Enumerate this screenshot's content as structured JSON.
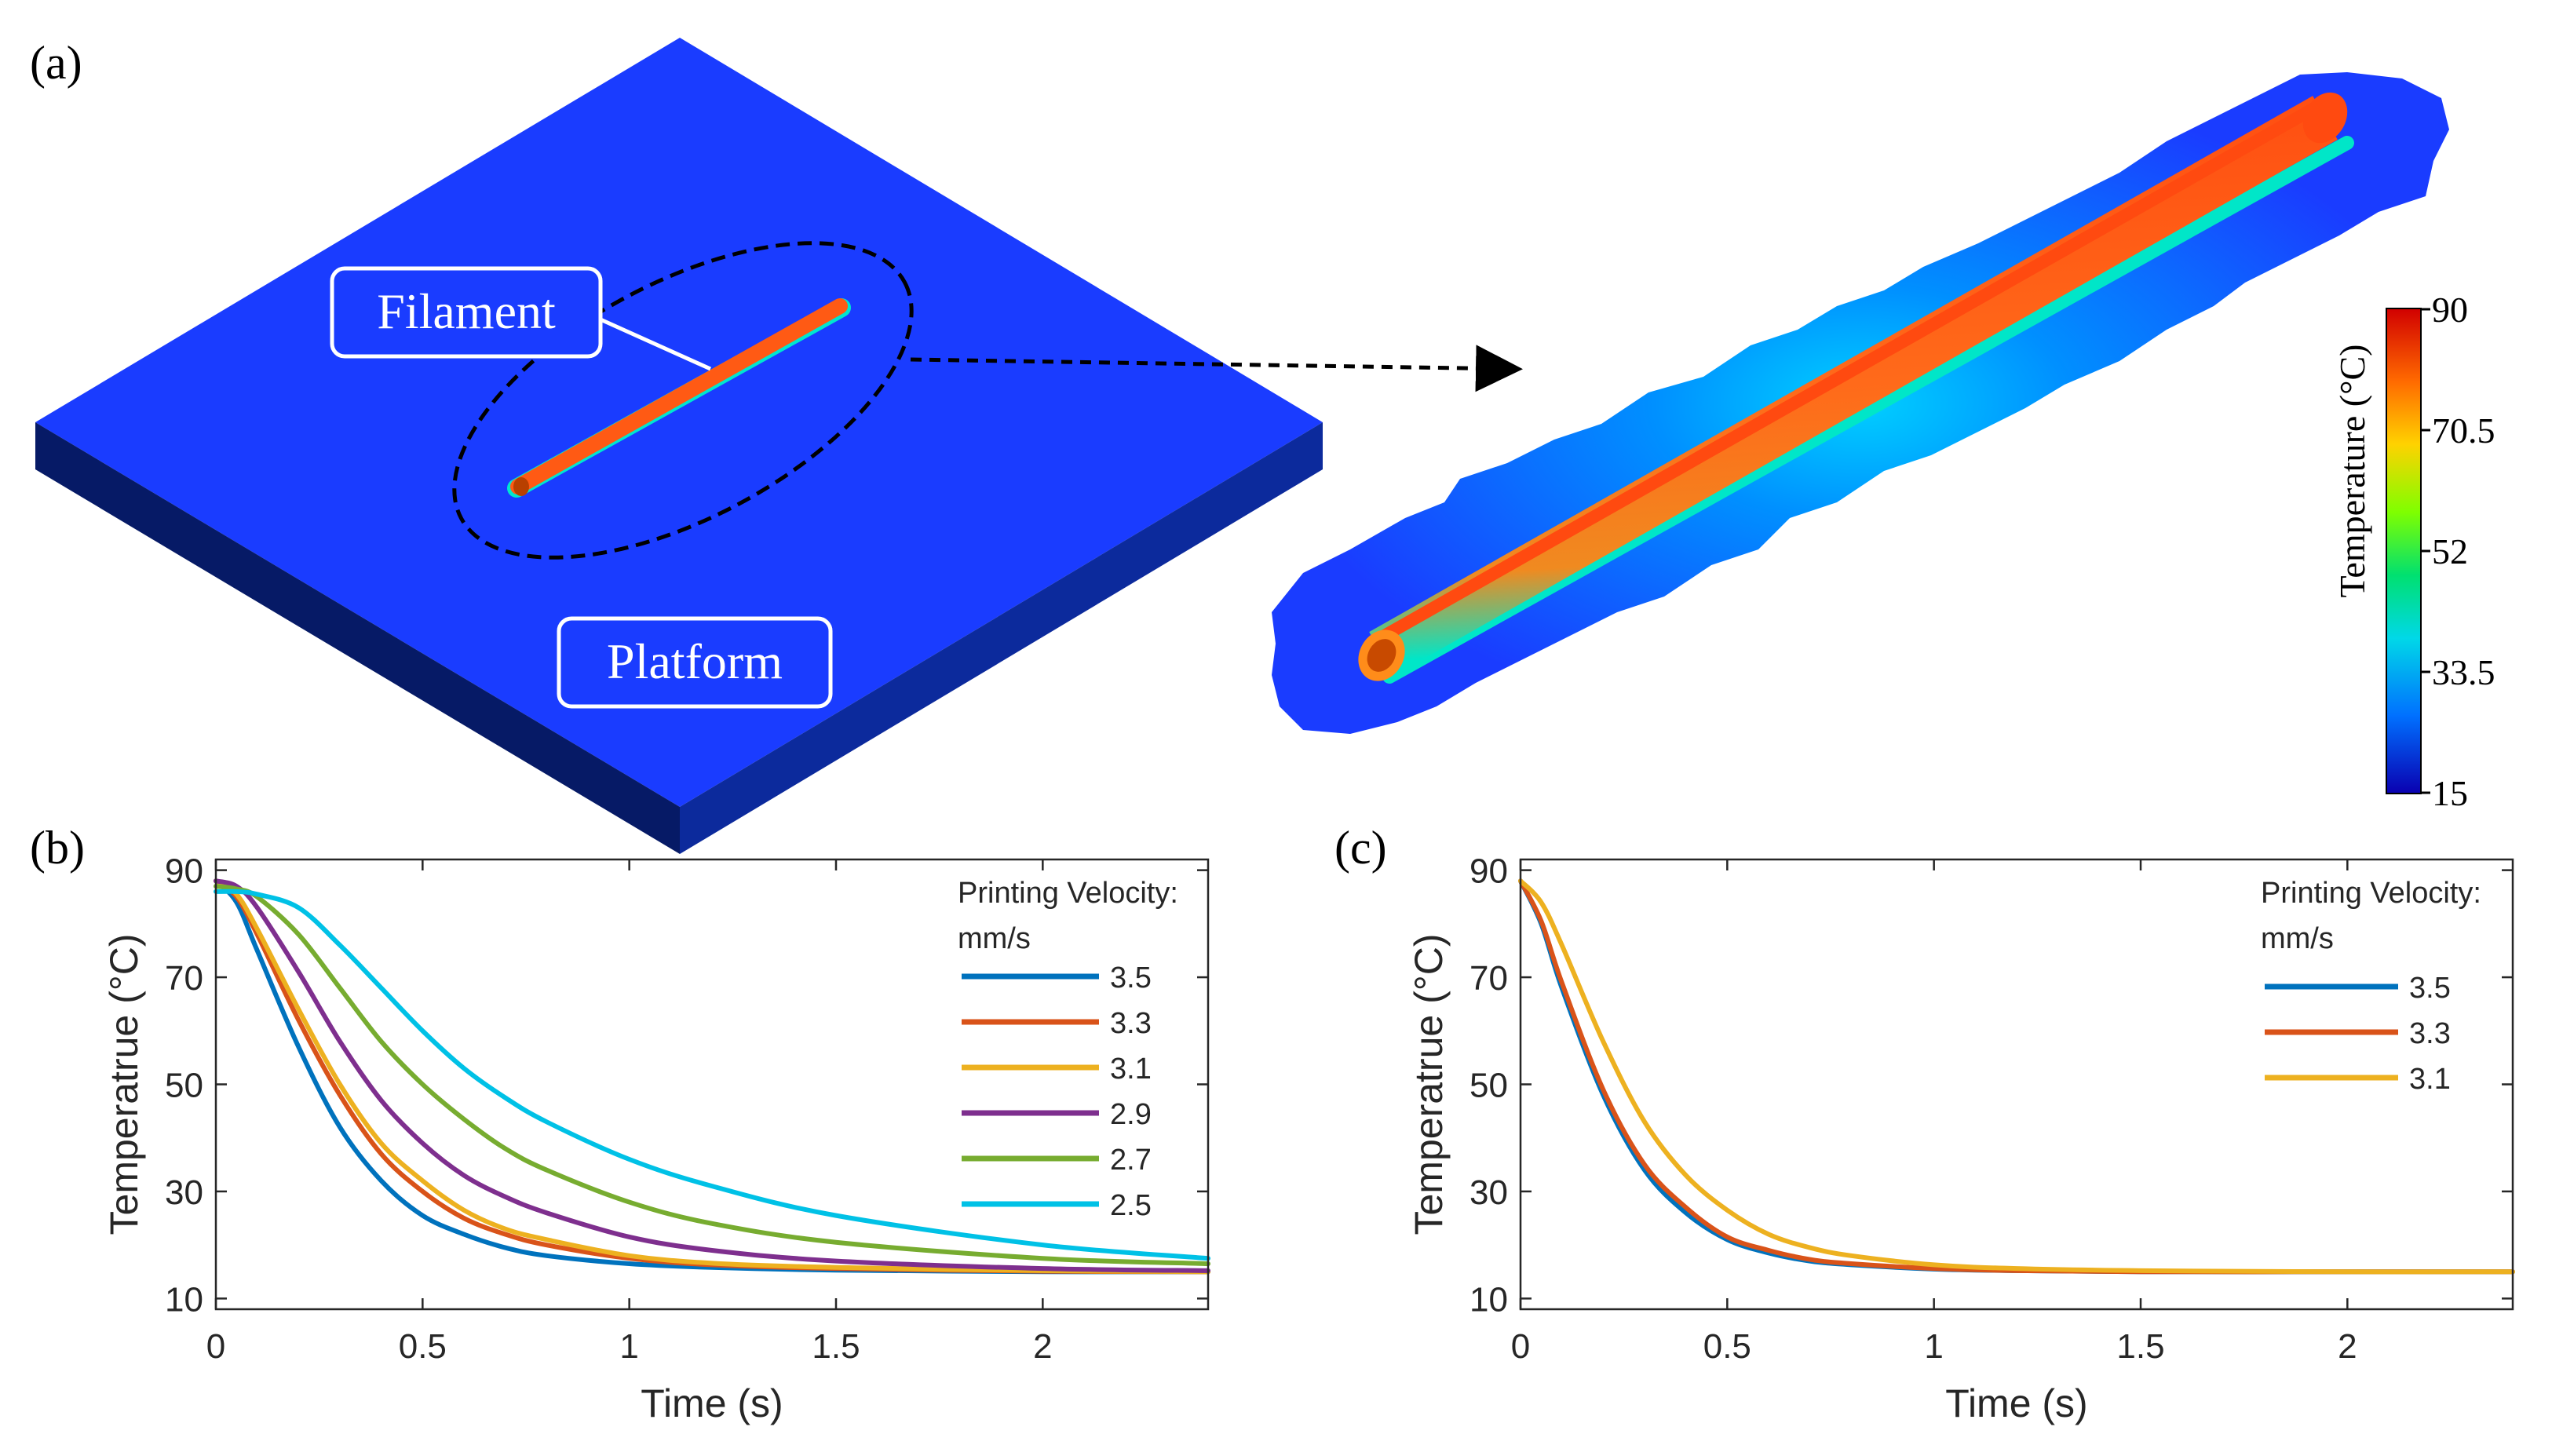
{
  "panel_labels": {
    "a": "(a)",
    "b": "(b)",
    "c": "(c)"
  },
  "panel_a": {
    "filament_label": "Filament",
    "platform_label": "Platform",
    "colorbar": {
      "title": "Temperature (°C)",
      "ticks": [
        "90",
        "70.5",
        "52",
        "33.5",
        "15"
      ],
      "colors": [
        "#d10000",
        "#ff6a00",
        "#ffd200",
        "#7fff00",
        "#00e070",
        "#00d8e8",
        "#0070ff",
        "#0a00b0"
      ]
    },
    "colors": {
      "platform": "#1a3cff",
      "platform_side": "#0a1f70",
      "filament": "#ff5a14"
    }
  },
  "chart_data": [
    {
      "type": "line",
      "panel": "(b)",
      "xlabel": "Time (s)",
      "ylabel": "Temperatrue (°C)",
      "xlim": [
        0,
        2.4
      ],
      "ylim": [
        8,
        92
      ],
      "xticks": [
        0,
        0.5,
        1,
        1.5,
        2
      ],
      "xtick_labels": [
        "0",
        "0.5",
        "1",
        "1.5",
        "2"
      ],
      "yticks": [
        10,
        30,
        50,
        70,
        90
      ],
      "ytick_labels": [
        "10",
        "30",
        "50",
        "70",
        "90"
      ],
      "legend_title": [
        "Printing Velocity:",
        "mm/s"
      ],
      "legend_position": "top-right",
      "series": [
        {
          "name": "3.5",
          "color": "#0072bd",
          "x": [
            0,
            0.05,
            0.1,
            0.2,
            0.3,
            0.4,
            0.5,
            0.6,
            0.7,
            0.8,
            1.0,
            1.2,
            1.5,
            2.0,
            2.4
          ],
          "y": [
            88,
            84,
            75,
            57,
            42,
            32,
            25.5,
            22,
            19.5,
            18,
            16.5,
            15.8,
            15.3,
            15,
            15
          ]
        },
        {
          "name": "3.3",
          "color": "#d95319",
          "x": [
            0,
            0.05,
            0.1,
            0.2,
            0.3,
            0.4,
            0.5,
            0.6,
            0.7,
            0.8,
            1.0,
            1.2,
            1.5,
            2.0,
            2.4
          ],
          "y": [
            88,
            85,
            78,
            62,
            48,
            37,
            30,
            25,
            22,
            20,
            17.5,
            16.3,
            15.6,
            15.1,
            15
          ]
        },
        {
          "name": "3.1",
          "color": "#edb120",
          "x": [
            0,
            0.05,
            0.1,
            0.2,
            0.3,
            0.4,
            0.5,
            0.6,
            0.7,
            0.8,
            1.0,
            1.2,
            1.5,
            2.0,
            2.4
          ],
          "y": [
            88,
            85.5,
            79,
            64,
            50,
            39,
            32,
            26.5,
            23,
            21,
            18,
            16.6,
            15.8,
            15.2,
            15
          ]
        },
        {
          "name": "2.9",
          "color": "#7e2f8e",
          "x": [
            0,
            0.05,
            0.1,
            0.2,
            0.3,
            0.4,
            0.5,
            0.6,
            0.7,
            0.8,
            1.0,
            1.2,
            1.5,
            2.0,
            2.4
          ],
          "y": [
            88,
            87,
            83,
            71,
            58,
            47,
            39,
            33,
            29,
            26,
            21.5,
            19,
            17,
            15.6,
            15.2
          ]
        },
        {
          "name": "2.7",
          "color": "#77ac30",
          "x": [
            0,
            0.05,
            0.1,
            0.2,
            0.3,
            0.4,
            0.5,
            0.6,
            0.7,
            0.8,
            1.0,
            1.2,
            1.5,
            2.0,
            2.4
          ],
          "y": [
            87,
            86.5,
            85,
            78,
            68,
            58,
            50,
            43.5,
            38,
            34,
            28,
            24,
            20.5,
            17.5,
            16.5
          ]
        },
        {
          "name": "2.5",
          "color": "#00c1e6",
          "x": [
            0,
            0.05,
            0.1,
            0.2,
            0.3,
            0.4,
            0.5,
            0.6,
            0.7,
            0.8,
            1.0,
            1.2,
            1.5,
            2.0,
            2.4
          ],
          "y": [
            86,
            86,
            85.5,
            83,
            76,
            68,
            60,
            53,
            47.5,
            43,
            36,
            31,
            25.5,
            20,
            17.5
          ]
        }
      ]
    },
    {
      "type": "line",
      "panel": "(c)",
      "xlabel": "Time (s)",
      "ylabel": "Temperatrue (°C)",
      "xlim": [
        0,
        2.4
      ],
      "ylim": [
        8,
        92
      ],
      "xticks": [
        0,
        0.5,
        1,
        1.5,
        2
      ],
      "xtick_labels": [
        "0",
        "0.5",
        "1",
        "1.5",
        "2"
      ],
      "yticks": [
        10,
        30,
        50,
        70,
        90
      ],
      "ytick_labels": [
        "10",
        "30",
        "50",
        "70",
        "90"
      ],
      "legend_title": [
        "Printing Velocity:",
        "mm/s"
      ],
      "legend_position": "top-right",
      "series": [
        {
          "name": "3.5",
          "color": "#0072bd",
          "x": [
            0,
            0.05,
            0.1,
            0.2,
            0.3,
            0.4,
            0.5,
            0.6,
            0.7,
            0.8,
            1.0,
            1.2,
            1.5,
            2.0,
            2.4
          ],
          "y": [
            88,
            80,
            68,
            48,
            34,
            26,
            21,
            18.5,
            17,
            16.3,
            15.5,
            15.2,
            15,
            15,
            15
          ]
        },
        {
          "name": "3.3",
          "color": "#d95319",
          "x": [
            0,
            0.05,
            0.1,
            0.2,
            0.3,
            0.4,
            0.5,
            0.6,
            0.7,
            0.8,
            1.0,
            1.2,
            1.5,
            2.0,
            2.4
          ],
          "y": [
            88,
            80.5,
            69,
            49,
            35,
            27,
            21.5,
            19,
            17.3,
            16.5,
            15.6,
            15.2,
            15,
            15,
            15
          ]
        },
        {
          "name": "3.1",
          "color": "#edb120",
          "x": [
            0,
            0.05,
            0.1,
            0.2,
            0.3,
            0.4,
            0.5,
            0.6,
            0.7,
            0.8,
            1.0,
            1.2,
            1.5,
            2.0,
            2.4
          ],
          "y": [
            88,
            84,
            76,
            58,
            43,
            33,
            26.5,
            22,
            19.5,
            18,
            16.3,
            15.6,
            15.2,
            15,
            15
          ]
        }
      ]
    }
  ]
}
